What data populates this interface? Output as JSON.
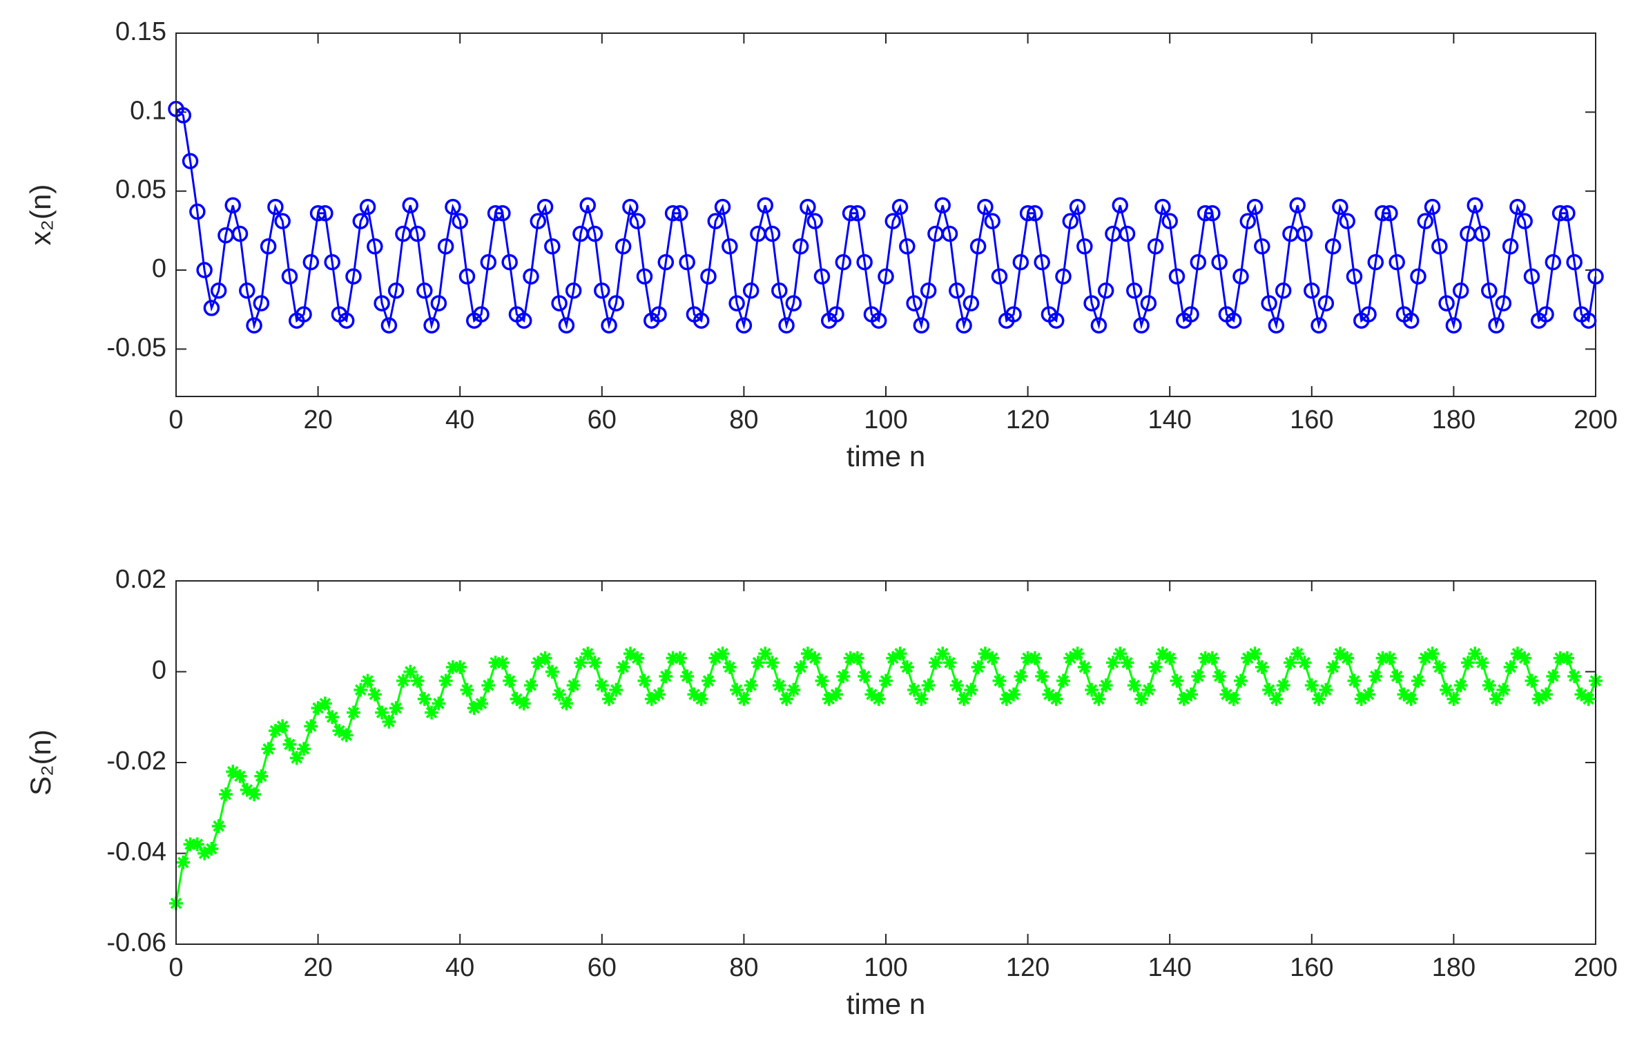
{
  "chart_data": [
    {
      "type": "line",
      "xlabel": "time n",
      "ylabel": "x₂(n)",
      "xlim": [
        0,
        200
      ],
      "ylim": [
        -0.08,
        0.15
      ],
      "xticks": [
        0,
        20,
        40,
        60,
        80,
        100,
        120,
        140,
        160,
        180,
        200
      ],
      "yticks": [
        -0.05,
        0,
        0.05,
        0.1,
        0.15
      ],
      "x": [
        0,
        1,
        2,
        3,
        4,
        5,
        6,
        7,
        8,
        9,
        10,
        11,
        12,
        13,
        14,
        15,
        16,
        17,
        18,
        19,
        20,
        21,
        22,
        23,
        24,
        25,
        26,
        27,
        28,
        29,
        30,
        31,
        32,
        33,
        34,
        35,
        36,
        37,
        38,
        39,
        40,
        41,
        42,
        43,
        44,
        45,
        46,
        47,
        48,
        49,
        50,
        51,
        52,
        53,
        54,
        55,
        56,
        57,
        58,
        59,
        60,
        61,
        62,
        63,
        64,
        65,
        66,
        67,
        68,
        69,
        70,
        71,
        72,
        73,
        74,
        75,
        76,
        77,
        78,
        79,
        80,
        81,
        82,
        83,
        84,
        85,
        86,
        87,
        88,
        89,
        90,
        91,
        92,
        93,
        94,
        95,
        96,
        97,
        98,
        99,
        100,
        101,
        102,
        103,
        104,
        105,
        106,
        107,
        108,
        109,
        110,
        111,
        112,
        113,
        114,
        115,
        116,
        117,
        118,
        119,
        120,
        121,
        122,
        123,
        124,
        125,
        126,
        127,
        128,
        129,
        130,
        131,
        132,
        133,
        134,
        135,
        136,
        137,
        138,
        139,
        140,
        141,
        142,
        143,
        144,
        145,
        146,
        147,
        148,
        149,
        150,
        151,
        152,
        153,
        154,
        155,
        156,
        157,
        158,
        159,
        160,
        161,
        162,
        163,
        164,
        165,
        166,
        167,
        168,
        169,
        170,
        171,
        172,
        173,
        174,
        175,
        176,
        177,
        178,
        179,
        180,
        181,
        182,
        183,
        184,
        185,
        186,
        187,
        188,
        189,
        190,
        191,
        192,
        193,
        194,
        195,
        196,
        197,
        198,
        199,
        200
      ],
      "series": [
        {
          "color": "#0000ff",
          "marker": "circle",
          "values": [
            0.102,
            0.098,
            0.069,
            0.037,
            0.0,
            -0.024,
            -0.013,
            0.022,
            0.041,
            0.023,
            -0.013,
            -0.035,
            -0.021,
            0.015,
            0.04,
            0.031,
            -0.004,
            -0.032,
            -0.028,
            0.005,
            0.036,
            0.036,
            0.005,
            -0.028,
            -0.032,
            -0.004,
            0.031,
            0.04,
            0.015,
            -0.021,
            -0.035,
            -0.013,
            0.023,
            0.041,
            0.023,
            -0.013,
            -0.035,
            -0.021,
            0.015,
            0.04,
            0.031,
            -0.004,
            -0.032,
            -0.028,
            0.005,
            0.036,
            0.036,
            0.005,
            -0.028,
            -0.032,
            -0.004,
            0.031,
            0.04,
            0.015,
            -0.021,
            -0.035,
            -0.013,
            0.023,
            0.041,
            0.023,
            -0.013,
            -0.035,
            -0.021,
            0.015,
            0.04,
            0.031,
            -0.004,
            -0.032,
            -0.028,
            0.005,
            0.036,
            0.036,
            0.005,
            -0.028,
            -0.032,
            -0.004,
            0.031,
            0.04,
            0.015,
            -0.021,
            -0.035,
            -0.013,
            0.023,
            0.041,
            0.023,
            -0.013,
            -0.035,
            -0.021,
            0.015,
            0.04,
            0.031,
            -0.004,
            -0.032,
            -0.028,
            0.005,
            0.036,
            0.036,
            0.005,
            -0.028,
            -0.032,
            -0.004,
            0.031,
            0.04,
            0.015,
            -0.021,
            -0.035,
            -0.013,
            0.023,
            0.041,
            0.023,
            -0.013,
            -0.035,
            -0.021,
            0.015,
            0.04,
            0.031,
            -0.004,
            -0.032,
            -0.028,
            0.005,
            0.036,
            0.036,
            0.005,
            -0.028,
            -0.032,
            -0.004,
            0.031,
            0.04,
            0.015,
            -0.021,
            -0.035,
            -0.013,
            0.023,
            0.041,
            0.023,
            -0.013,
            -0.035,
            -0.021,
            0.015,
            0.04,
            0.031,
            -0.004,
            -0.032,
            -0.028,
            0.005,
            0.036,
            0.036,
            0.005,
            -0.028,
            -0.032,
            -0.004,
            0.031,
            0.04,
            0.015,
            -0.021,
            -0.035,
            -0.013,
            0.023,
            0.041,
            0.023,
            -0.013,
            -0.035,
            -0.021,
            0.015,
            0.04,
            0.031,
            -0.004,
            -0.032,
            -0.028,
            0.005,
            0.036,
            0.036,
            0.005,
            -0.028,
            -0.032,
            -0.004,
            0.031,
            0.04,
            0.015,
            -0.021,
            -0.035,
            -0.013,
            0.023,
            0.041,
            0.023,
            -0.013,
            -0.035,
            -0.021,
            0.015,
            0.04,
            0.031,
            -0.004,
            -0.032,
            -0.028,
            0.005,
            0.036,
            0.036,
            0.005,
            -0.028,
            -0.032,
            -0.004
          ]
        }
      ]
    },
    {
      "type": "line",
      "xlabel": "time n",
      "ylabel": "S₂(n)",
      "xlim": [
        0,
        200
      ],
      "ylim": [
        -0.06,
        0.02
      ],
      "xticks": [
        0,
        20,
        40,
        60,
        80,
        100,
        120,
        140,
        160,
        180,
        200
      ],
      "yticks": [
        -0.06,
        -0.04,
        -0.02,
        0,
        0.02
      ],
      "x": [
        0,
        1,
        2,
        3,
        4,
        5,
        6,
        7,
        8,
        9,
        10,
        11,
        12,
        13,
        14,
        15,
        16,
        17,
        18,
        19,
        20,
        21,
        22,
        23,
        24,
        25,
        26,
        27,
        28,
        29,
        30,
        31,
        32,
        33,
        34,
        35,
        36,
        37,
        38,
        39,
        40,
        41,
        42,
        43,
        44,
        45,
        46,
        47,
        48,
        49,
        50,
        51,
        52,
        53,
        54,
        55,
        56,
        57,
        58,
        59,
        60,
        61,
        62,
        63,
        64,
        65,
        66,
        67,
        68,
        69,
        70,
        71,
        72,
        73,
        74,
        75,
        76,
        77,
        78,
        79,
        80,
        81,
        82,
        83,
        84,
        85,
        86,
        87,
        88,
        89,
        90,
        91,
        92,
        93,
        94,
        95,
        96,
        97,
        98,
        99,
        100,
        101,
        102,
        103,
        104,
        105,
        106,
        107,
        108,
        109,
        110,
        111,
        112,
        113,
        114,
        115,
        116,
        117,
        118,
        119,
        120,
        121,
        122,
        123,
        124,
        125,
        126,
        127,
        128,
        129,
        130,
        131,
        132,
        133,
        134,
        135,
        136,
        137,
        138,
        139,
        140,
        141,
        142,
        143,
        144,
        145,
        146,
        147,
        148,
        149,
        150,
        151,
        152,
        153,
        154,
        155,
        156,
        157,
        158,
        159,
        160,
        161,
        162,
        163,
        164,
        165,
        166,
        167,
        168,
        169,
        170,
        171,
        172,
        173,
        174,
        175,
        176,
        177,
        178,
        179,
        180,
        181,
        182,
        183,
        184,
        185,
        186,
        187,
        188,
        189,
        190,
        191,
        192,
        193,
        194,
        195,
        196,
        197,
        198,
        199,
        200
      ],
      "series": [
        {
          "color": "#00ff00",
          "marker": "star",
          "values": [
            -0.051,
            -0.042,
            -0.038,
            -0.038,
            -0.04,
            -0.039,
            -0.034,
            -0.027,
            -0.022,
            -0.023,
            -0.026,
            -0.027,
            -0.023,
            -0.017,
            -0.013,
            -0.012,
            -0.016,
            -0.019,
            -0.017,
            -0.012,
            -0.008,
            -0.007,
            -0.01,
            -0.013,
            -0.014,
            -0.009,
            -0.004,
            -0.002,
            -0.005,
            -0.009,
            -0.011,
            -0.008,
            -0.002,
            0,
            -0.002,
            -0.006,
            -0.009,
            -0.007,
            -0.002,
            0.001,
            0.001,
            -0.004,
            -0.008,
            -0.007,
            -0.003,
            0.002,
            0.002,
            -0.002,
            -0.006,
            -0.007,
            -0.003,
            0.002,
            0.003,
            0,
            -0.005,
            -0.007,
            -0.003,
            0.002,
            0.004,
            0.002,
            -0.003,
            -0.006,
            -0.004,
            0.001,
            0.004,
            0.003,
            -0.002,
            -0.006,
            -0.005,
            -0.001,
            0.003,
            0.003,
            -0.001,
            -0.005,
            -0.006,
            -0.002,
            0.003,
            0.004,
            0.001,
            -0.004,
            -0.006,
            -0.003,
            0.002,
            0.004,
            0.002,
            -0.003,
            -0.006,
            -0.004,
            0.001,
            0.004,
            0.003,
            -0.002,
            -0.006,
            -0.005,
            -0.001,
            0.003,
            0.003,
            -0.001,
            -0.005,
            -0.006,
            -0.002,
            0.003,
            0.004,
            0.001,
            -0.004,
            -0.006,
            -0.003,
            0.002,
            0.004,
            0.002,
            -0.003,
            -0.006,
            -0.004,
            0.001,
            0.004,
            0.003,
            -0.002,
            -0.006,
            -0.005,
            -0.001,
            0.003,
            0.003,
            -0.001,
            -0.005,
            -0.006,
            -0.002,
            0.003,
            0.004,
            0.001,
            -0.004,
            -0.006,
            -0.003,
            0.002,
            0.004,
            0.002,
            -0.003,
            -0.006,
            -0.004,
            0.001,
            0.004,
            0.003,
            -0.002,
            -0.006,
            -0.005,
            -0.001,
            0.003,
            0.003,
            -0.001,
            -0.005,
            -0.006,
            -0.002,
            0.003,
            0.004,
            0.001,
            -0.004,
            -0.006,
            -0.003,
            0.002,
            0.004,
            0.002,
            -0.003,
            -0.006,
            -0.004,
            0.001,
            0.004,
            0.003,
            -0.002,
            -0.006,
            -0.005,
            -0.001,
            0.003,
            0.003,
            -0.001,
            -0.005,
            -0.006,
            -0.002,
            0.003,
            0.004,
            0.001,
            -0.004,
            -0.006,
            -0.003,
            0.002,
            0.004,
            0.002,
            -0.003,
            -0.006,
            -0.004,
            0.001,
            0.004,
            0.003,
            -0.002,
            -0.006,
            -0.005,
            -0.001,
            0.003,
            0.003,
            -0.001,
            -0.005,
            -0.006,
            -0.002
          ]
        }
      ]
    }
  ]
}
